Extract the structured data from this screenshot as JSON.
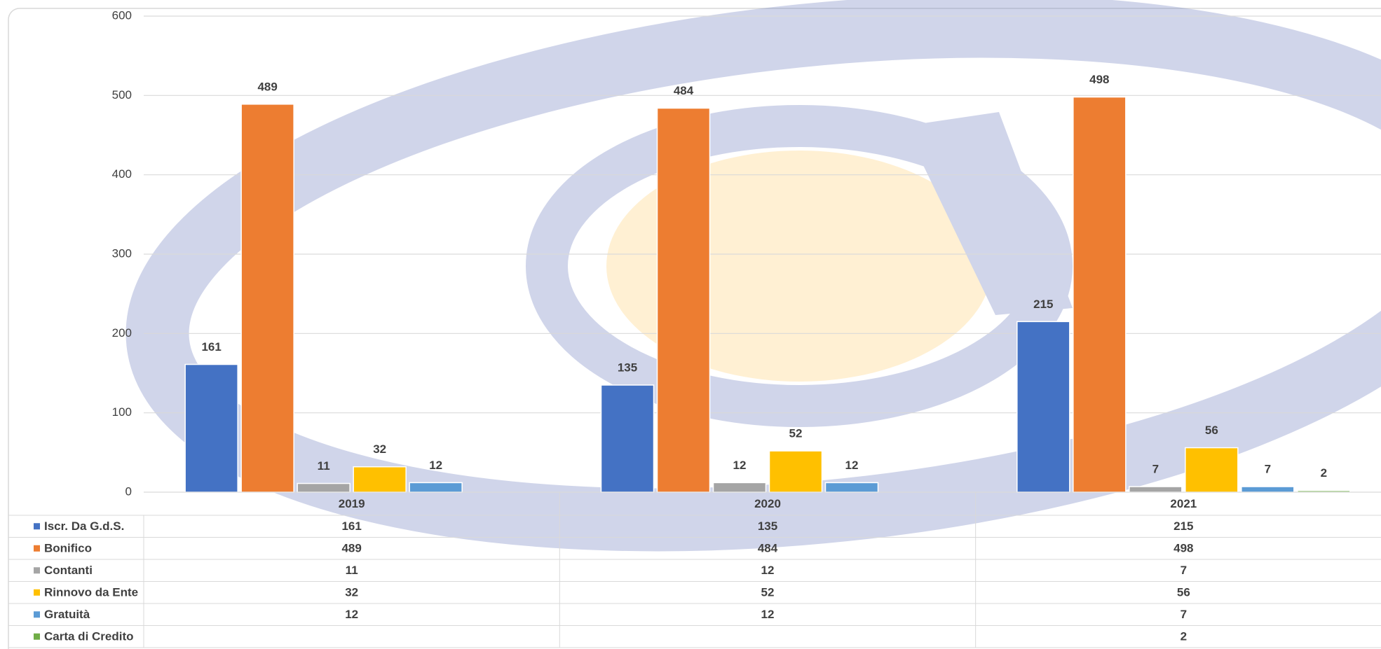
{
  "chart_data": {
    "type": "bar",
    "categories": [
      "2019",
      "2020",
      "2021"
    ],
    "series": [
      {
        "name": "Iscr. Da G.d.S.",
        "color": "#4472c4",
        "values": [
          161,
          135,
          215
        ]
      },
      {
        "name": "Bonifico",
        "color": "#ed7d31",
        "values": [
          489,
          484,
          498
        ]
      },
      {
        "name": "Contanti",
        "color": "#a5a5a5",
        "values": [
          11,
          12,
          7
        ]
      },
      {
        "name": "Rinnovo da Ente",
        "color": "#ffc000",
        "values": [
          32,
          52,
          56
        ]
      },
      {
        "name": "Gratuità",
        "color": "#5b9bd5",
        "values": [
          12,
          12,
          7
        ]
      },
      {
        "name": "Carta di Credito",
        "color": "#70ad47",
        "values": [
          null,
          null,
          2
        ]
      }
    ],
    "ylim": [
      0,
      600
    ],
    "yticks": [
      0,
      100,
      200,
      300,
      400,
      500,
      600
    ],
    "grid": true,
    "data_table": true
  }
}
